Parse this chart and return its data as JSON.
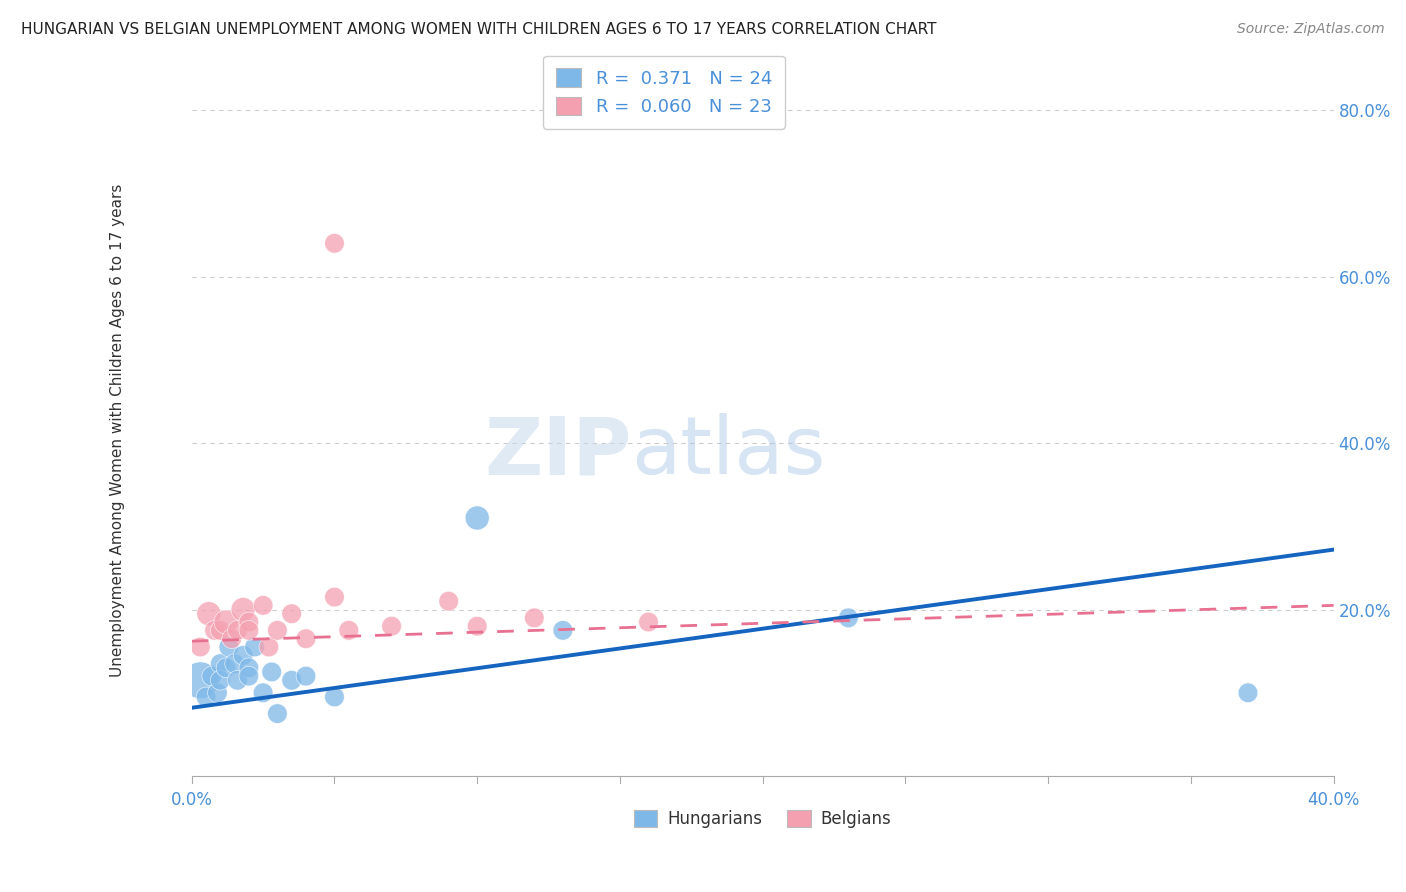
{
  "title": "HUNGARIAN VS BELGIAN UNEMPLOYMENT AMONG WOMEN WITH CHILDREN AGES 6 TO 17 YEARS CORRELATION CHART",
  "source": "Source: ZipAtlas.com",
  "ylabel": "Unemployment Among Women with Children Ages 6 to 17 years",
  "xlim": [
    0.0,
    0.4
  ],
  "ylim": [
    -0.02,
    0.85
  ],
  "yticks_right": [
    0.8,
    0.6,
    0.4,
    0.2
  ],
  "ytick_labels_right": [
    "80.0%",
    "60.0%",
    "40.0%",
    "20.0%"
  ],
  "legend_r_hungarian": "0.371",
  "legend_n_hungarian": "24",
  "legend_r_belgian": "0.060",
  "legend_n_belgian": "23",
  "hungarian_color": "#7EB8E8",
  "belgian_color": "#F4A0B0",
  "hungarian_line_color": "#1565C0",
  "belgian_line_color": "#E87090",
  "watermark_zip": "ZIP",
  "watermark_atlas": "atlas",
  "background_color": "#FFFFFF",
  "hungarian_x": [
    0.003,
    0.005,
    0.007,
    0.009,
    0.01,
    0.01,
    0.012,
    0.013,
    0.015,
    0.016,
    0.018,
    0.02,
    0.02,
    0.022,
    0.025,
    0.028,
    0.03,
    0.035,
    0.04,
    0.05,
    0.1,
    0.13,
    0.23,
    0.37
  ],
  "hungarian_y": [
    0.115,
    0.095,
    0.12,
    0.1,
    0.135,
    0.115,
    0.13,
    0.155,
    0.135,
    0.115,
    0.145,
    0.13,
    0.12,
    0.155,
    0.1,
    0.125,
    0.075,
    0.115,
    0.12,
    0.095,
    0.31,
    0.175,
    0.19,
    0.1
  ],
  "hungarian_sizes": [
    700,
    200,
    200,
    200,
    200,
    200,
    200,
    200,
    200,
    200,
    200,
    200,
    200,
    200,
    200,
    200,
    200,
    200,
    200,
    200,
    300,
    200,
    200,
    200
  ],
  "belgian_x": [
    0.003,
    0.006,
    0.008,
    0.01,
    0.012,
    0.014,
    0.016,
    0.018,
    0.02,
    0.02,
    0.025,
    0.027,
    0.03,
    0.035,
    0.04,
    0.05,
    0.055,
    0.07,
    0.09,
    0.1,
    0.12,
    0.16,
    0.05
  ],
  "belgian_y": [
    0.155,
    0.195,
    0.175,
    0.175,
    0.185,
    0.165,
    0.175,
    0.2,
    0.185,
    0.175,
    0.205,
    0.155,
    0.175,
    0.195,
    0.165,
    0.215,
    0.175,
    0.18,
    0.21,
    0.18,
    0.19,
    0.185,
    0.64
  ],
  "belgian_sizes": [
    200,
    300,
    200,
    200,
    300,
    200,
    200,
    300,
    200,
    200,
    200,
    200,
    200,
    200,
    200,
    200,
    200,
    200,
    200,
    200,
    200,
    200,
    200
  ],
  "hungarian_line_x0": 0.0,
  "hungarian_line_x1": 0.4,
  "hungarian_line_y0": 0.082,
  "hungarian_line_y1": 0.272,
  "belgian_line_x0": 0.0,
  "belgian_line_x1": 0.4,
  "belgian_line_y0": 0.162,
  "belgian_line_y1": 0.205,
  "dotted_line_color": "#CCCCCC"
}
